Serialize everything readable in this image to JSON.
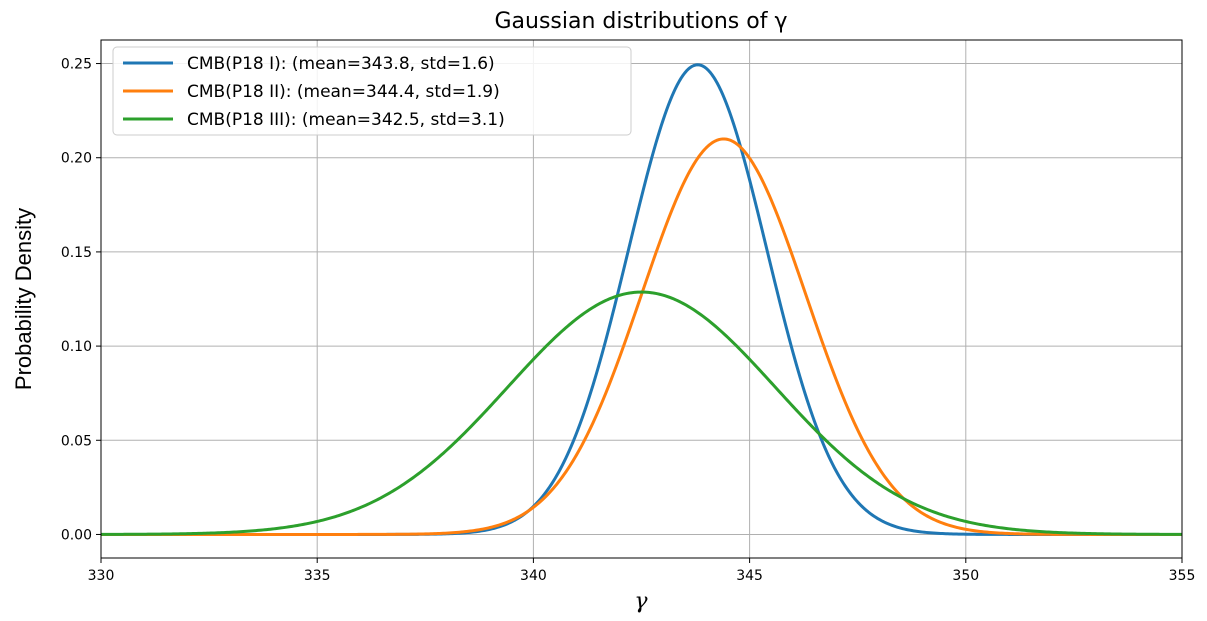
{
  "chart_data": {
    "type": "line",
    "title": "Gaussian distributions of γ",
    "xlabel": "γ",
    "ylabel": "Probability Density",
    "xlim": [
      330,
      355
    ],
    "ylim": [
      -0.0125,
      0.2625
    ],
    "xticks": [
      330,
      335,
      340,
      345,
      350,
      355
    ],
    "xtick_labels": [
      "330",
      "335",
      "340",
      "345",
      "350",
      "355"
    ],
    "yticks": [
      0.0,
      0.05,
      0.1,
      0.15,
      0.2,
      0.25
    ],
    "ytick_labels": [
      "0.00",
      "0.05",
      "0.10",
      "0.15",
      "0.20",
      "0.25"
    ],
    "grid": true,
    "legend_position": "top-left",
    "series": [
      {
        "name": "CMB(P18 I): (mean=343.8, std=1.6)",
        "mean": 343.8,
        "std": 1.6,
        "color": "#1f77b4"
      },
      {
        "name": "CMB(P18 II): (mean=344.4, std=1.9)",
        "mean": 344.4,
        "std": 1.9,
        "color": "#ff7f0e"
      },
      {
        "name": "CMB(P18 III): (mean=342.5, std=3.1)",
        "mean": 342.5,
        "std": 3.1,
        "color": "#2ca02c"
      }
    ]
  }
}
